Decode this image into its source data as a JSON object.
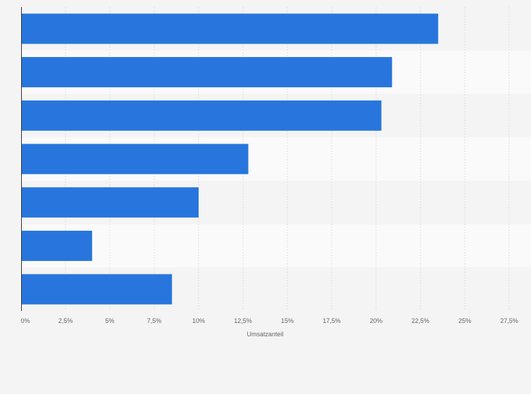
{
  "chart_data": {
    "type": "bar",
    "orientation": "horizontal",
    "categories": [
      "",
      "",
      "",
      "",
      "",
      "",
      ""
    ],
    "values": [
      23.5,
      20.9,
      20.3,
      12.8,
      10.0,
      4.0,
      8.5
    ],
    "xlabel": "Umsatzanteil",
    "ylabel": "",
    "xlim": [
      0,
      27.5
    ],
    "xticks": [
      {
        "value": 0,
        "label": "0%"
      },
      {
        "value": 2.5,
        "label": "2,5%"
      },
      {
        "value": 5,
        "label": "5%"
      },
      {
        "value": 7.5,
        "label": "7,5%"
      },
      {
        "value": 10,
        "label": "10%"
      },
      {
        "value": 12.5,
        "label": "12,5%"
      },
      {
        "value": 15,
        "label": "15%"
      },
      {
        "value": 17.5,
        "label": "17,5%"
      },
      {
        "value": 20,
        "label": "20%"
      },
      {
        "value": 22.5,
        "label": "22,5%"
      },
      {
        "value": 25,
        "label": "25%"
      },
      {
        "value": 27.5,
        "label": "27,5%"
      }
    ],
    "grid": true,
    "colors": {
      "bar": "#2876dd",
      "grid": "#dddddd",
      "band_dark": "#f4f4f4",
      "band_light": "#fafafa",
      "axis": "#333333",
      "text": "#666666"
    }
  }
}
